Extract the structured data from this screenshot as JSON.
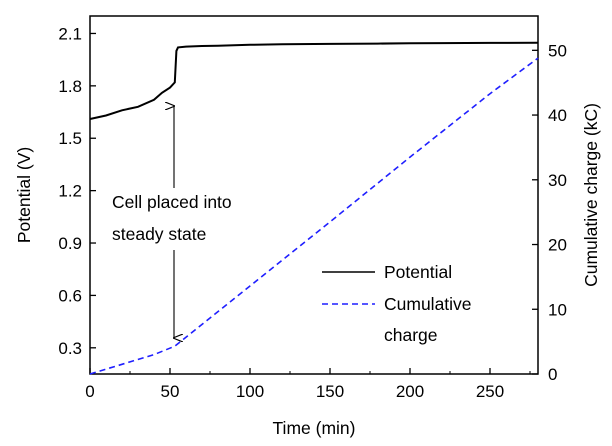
{
  "chart_data": {
    "type": "line",
    "xlabel": "Time (min)",
    "ylabel_left": "Potential (V)",
    "ylabel_right": "Cumulative charge (kC)",
    "xlim": [
      0,
      280
    ],
    "ylim_left": [
      0.15,
      2.2
    ],
    "ylim_right": [
      0,
      55.3
    ],
    "x_ticks": [
      0,
      50,
      100,
      150,
      200,
      250
    ],
    "x_tick_labels": [
      "0",
      "50",
      "100",
      "150",
      "200",
      "250"
    ],
    "y_left_ticks": [
      0.3,
      0.6,
      0.9,
      1.2,
      1.5,
      1.8,
      2.1
    ],
    "y_left_tick_labels": [
      "0.3",
      "0.6",
      "0.9",
      "1.2",
      "1.5",
      "1.8",
      "2.1"
    ],
    "y_right_ticks": [
      0,
      10,
      20,
      30,
      40,
      50
    ],
    "y_right_tick_labels": [
      "0",
      "10",
      "20",
      "30",
      "40",
      "50"
    ],
    "series": [
      {
        "name": "Potential",
        "axis": "left",
        "style": "solid",
        "color": "#000000",
        "x": [
          0,
          10,
          20,
          30,
          40,
          45,
          50,
          53,
          54,
          55,
          60,
          70,
          80,
          100,
          120,
          150,
          180,
          200,
          220,
          250,
          280
        ],
        "y": [
          1.61,
          1.63,
          1.66,
          1.68,
          1.72,
          1.76,
          1.79,
          1.82,
          2.0,
          2.02,
          2.025,
          2.028,
          2.03,
          2.035,
          2.038,
          2.04,
          2.042,
          2.044,
          2.045,
          2.046,
          2.047
        ]
      },
      {
        "name": "Cumulative charge",
        "axis": "right",
        "style": "dashed",
        "color": "#1f1fff",
        "x": [
          0,
          20,
          40,
          53,
          100,
          150,
          200,
          250,
          280
        ],
        "y": [
          0,
          1.5,
          3.0,
          4.3,
          13.6,
          23.5,
          33.5,
          43.3,
          48.8
        ]
      }
    ],
    "annotation": {
      "lines": [
        "Cell placed into",
        "steady state"
      ],
      "x": 53
    },
    "legend": {
      "placement": "lower-right",
      "entries": [
        {
          "lines": [
            "Potential"
          ],
          "style": "solid",
          "color": "#000000"
        },
        {
          "lines": [
            "Cumulative",
            "charge"
          ],
          "style": "dashed",
          "color": "#1f1fff"
        }
      ]
    },
    "grid": false
  }
}
